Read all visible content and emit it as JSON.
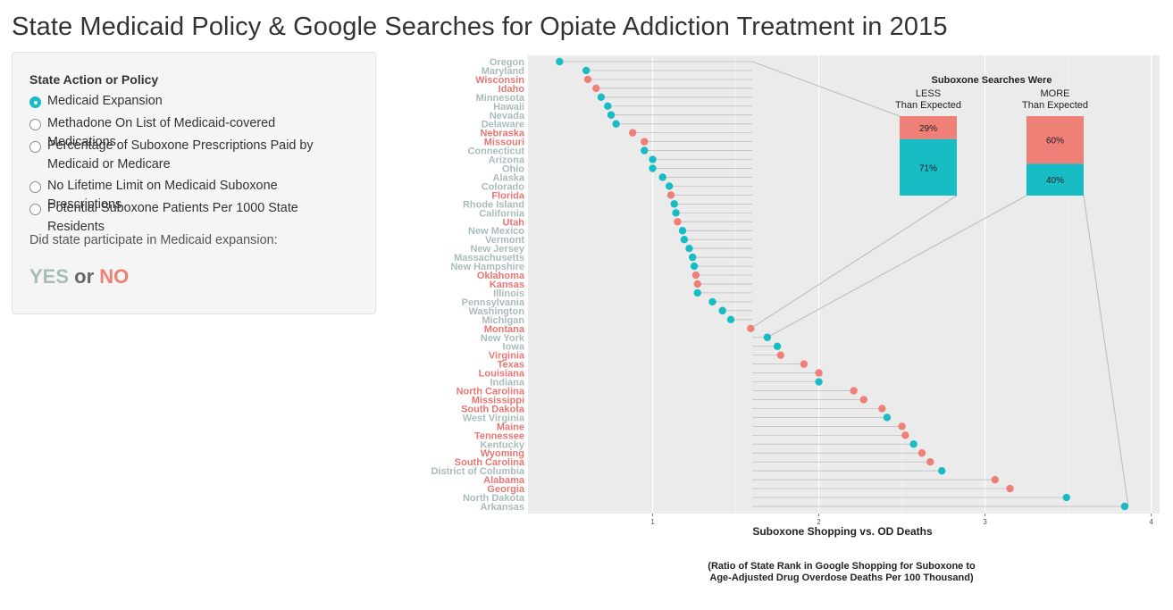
{
  "page": {
    "title": "State Medicaid Policy & Google Searches for Opiate Addiction Treatment in 2015"
  },
  "sidebar": {
    "heading": "State Action or Policy",
    "options": [
      {
        "label": "Medicaid Expansion",
        "checked": true
      },
      {
        "label": "Methadone On List of Medicaid-covered Medications",
        "checked": false
      },
      {
        "label": "Percentage of Suboxone Prescriptions Paid by Medicaid or Medicare",
        "checked": false
      },
      {
        "label": "No Lifetime Limit on Medicaid Suboxone Prescriptions",
        "checked": false
      },
      {
        "label": "Potential Suboxone Patients Per 1000 State Residents",
        "checked": false
      }
    ],
    "question": "Did state participate in Medicaid expansion:",
    "legend": {
      "yes": "YES",
      "or": "or",
      "no": "NO"
    },
    "colors": {
      "yes": "#a9bcbc",
      "no": "#ef8077",
      "or": "#666666"
    }
  },
  "chart_data": {
    "type": "scatter",
    "subtype": "dot-plot with segments to reference line",
    "x_reference": 1.6,
    "xlim": [
      0.25,
      4.05
    ],
    "xticks": [
      1,
      2,
      3,
      4
    ],
    "xlabel": "Suboxone Shopping vs. OD Deaths",
    "xlabel_note": "(Ratio of State Rank in Google Shopping for Suboxone to Age-Adjusted Drug Overdose Deaths Per 100 Thousand)",
    "series_colors": {
      "yes": "#18bcc4",
      "no": "#ef8077"
    },
    "label_colors": {
      "yes": "#a9bcbc",
      "no": "#e87673"
    },
    "points": [
      {
        "state": "Oregon",
        "value": 0.44,
        "expanded": true
      },
      {
        "state": "Maryland",
        "value": 0.6,
        "expanded": true
      },
      {
        "state": "Wisconsin",
        "value": 0.61,
        "expanded": false
      },
      {
        "state": "Idaho",
        "value": 0.66,
        "expanded": false
      },
      {
        "state": "Minnesota",
        "value": 0.69,
        "expanded": true
      },
      {
        "state": "Hawaii",
        "value": 0.73,
        "expanded": true
      },
      {
        "state": "Nevada",
        "value": 0.75,
        "expanded": true
      },
      {
        "state": "Delaware",
        "value": 0.78,
        "expanded": true
      },
      {
        "state": "Nebraska",
        "value": 0.88,
        "expanded": false
      },
      {
        "state": "Missouri",
        "value": 0.95,
        "expanded": false
      },
      {
        "state": "Connecticut",
        "value": 0.95,
        "expanded": true
      },
      {
        "state": "Arizona",
        "value": 1.0,
        "expanded": true
      },
      {
        "state": "Ohio",
        "value": 1.0,
        "expanded": true
      },
      {
        "state": "Alaska",
        "value": 1.06,
        "expanded": true
      },
      {
        "state": "Colorado",
        "value": 1.1,
        "expanded": true
      },
      {
        "state": "Florida",
        "value": 1.11,
        "expanded": false
      },
      {
        "state": "Rhode Island",
        "value": 1.13,
        "expanded": true
      },
      {
        "state": "California",
        "value": 1.14,
        "expanded": true
      },
      {
        "state": "Utah",
        "value": 1.15,
        "expanded": false
      },
      {
        "state": "New Mexico",
        "value": 1.18,
        "expanded": true
      },
      {
        "state": "Vermont",
        "value": 1.19,
        "expanded": true
      },
      {
        "state": "New Jersey",
        "value": 1.22,
        "expanded": true
      },
      {
        "state": "Massachusetts",
        "value": 1.24,
        "expanded": true
      },
      {
        "state": "New Hampshire",
        "value": 1.25,
        "expanded": true
      },
      {
        "state": "Oklahoma",
        "value": 1.26,
        "expanded": false
      },
      {
        "state": "Kansas",
        "value": 1.27,
        "expanded": false
      },
      {
        "state": "Illinois",
        "value": 1.27,
        "expanded": true
      },
      {
        "state": "Pennsylvania",
        "value": 1.36,
        "expanded": true
      },
      {
        "state": "Washington",
        "value": 1.42,
        "expanded": true
      },
      {
        "state": "Michigan",
        "value": 1.47,
        "expanded": true
      },
      {
        "state": "Montana",
        "value": 1.59,
        "expanded": false
      },
      {
        "state": "New York",
        "value": 1.69,
        "expanded": true
      },
      {
        "state": "Iowa",
        "value": 1.75,
        "expanded": true
      },
      {
        "state": "Virginia",
        "value": 1.77,
        "expanded": false
      },
      {
        "state": "Texas",
        "value": 1.91,
        "expanded": false
      },
      {
        "state": "Louisiana",
        "value": 2.0,
        "expanded": false
      },
      {
        "state": "Indiana",
        "value": 2.0,
        "expanded": true
      },
      {
        "state": "North Carolina",
        "value": 2.21,
        "expanded": false
      },
      {
        "state": "Mississippi",
        "value": 2.27,
        "expanded": false
      },
      {
        "state": "South Dakota",
        "value": 2.38,
        "expanded": false
      },
      {
        "state": "West Virginia",
        "value": 2.41,
        "expanded": true
      },
      {
        "state": "Maine",
        "value": 2.5,
        "expanded": false
      },
      {
        "state": "Tennessee",
        "value": 2.52,
        "expanded": false
      },
      {
        "state": "Kentucky",
        "value": 2.57,
        "expanded": true
      },
      {
        "state": "Wyoming",
        "value": 2.62,
        "expanded": false
      },
      {
        "state": "South Carolina",
        "value": 2.67,
        "expanded": false
      },
      {
        "state": "District of Columbia",
        "value": 2.74,
        "expanded": true
      },
      {
        "state": "Alabama",
        "value": 3.06,
        "expanded": false
      },
      {
        "state": "Georgia",
        "value": 3.15,
        "expanded": false
      },
      {
        "state": "North Dakota",
        "value": 3.49,
        "expanded": true
      },
      {
        "state": "Arkansas",
        "value": 3.84,
        "expanded": true
      }
    ],
    "inset": {
      "title": "Suboxone Searches Were",
      "groups": [
        {
          "label_line1": "LESS",
          "label_line2": "Than Expected",
          "no_pct": 29,
          "yes_pct": 71,
          "no_label": "29%",
          "yes_label": "71%"
        },
        {
          "label_line1": "MORE",
          "label_line2": "Than Expected",
          "no_pct": 60,
          "yes_pct": 40,
          "no_label": "60%",
          "yes_label": "40%"
        }
      ]
    }
  }
}
